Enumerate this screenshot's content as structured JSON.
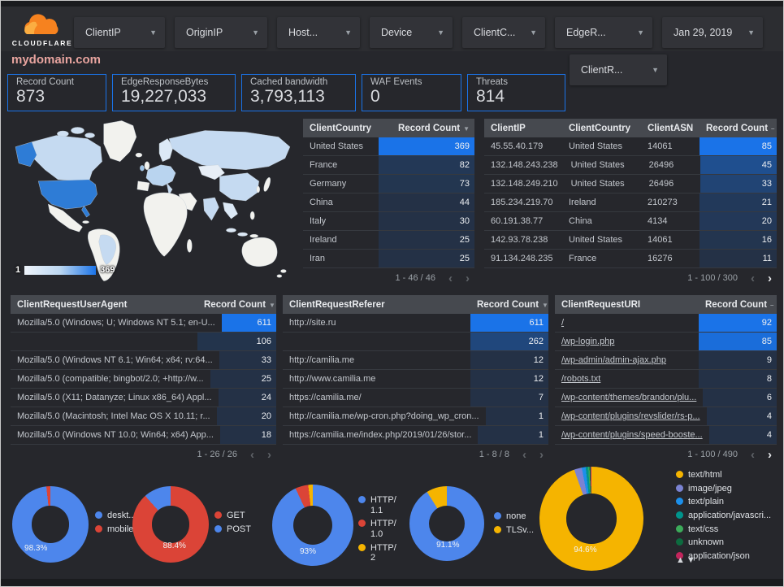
{
  "colors": {
    "accent": "#1a73e8",
    "accent_rgb": "26,115,232",
    "page_bg": "#26272c",
    "title_color": "#e8a49f",
    "logo_orange": "#f6821f"
  },
  "header": {
    "logo_text": "CLOUDFLARE",
    "filters": [
      {
        "label": "ClientIP"
      },
      {
        "label": "OriginIP"
      },
      {
        "label": "Host..."
      },
      {
        "label": "Device"
      },
      {
        "label": "ClientC..."
      },
      {
        "label": "EdgeR..."
      },
      {
        "label": "Jan 29, 2019"
      }
    ],
    "secondary_filter": {
      "label": "ClientR..."
    }
  },
  "title": "mydomain.com",
  "scorecards": [
    {
      "label": "Record Count",
      "value": "873"
    },
    {
      "label": "EdgeResponseBytes",
      "value": "19,227,033"
    },
    {
      "label": "Cached bandwidth",
      "value": "3,793,113"
    },
    {
      "label": "WAF Events",
      "value": "0"
    },
    {
      "label": "Threats",
      "value": "814"
    }
  ],
  "map": {
    "legend_min": "1",
    "legend_max": "369"
  },
  "tables": {
    "clientCountry": {
      "sort_char": "▼",
      "columns": [
        {
          "label": "ClientCountry",
          "flex": true
        },
        {
          "label": "Record Count",
          "w": 118,
          "sort": true,
          "num": true
        }
      ],
      "rows": [
        [
          "United States",
          369
        ],
        [
          "France",
          82
        ],
        [
          "Germany",
          73
        ],
        [
          "China",
          44
        ],
        [
          "Italy",
          30
        ],
        [
          "Ireland",
          25
        ],
        [
          "Iran",
          25
        ]
      ],
      "max": 369,
      "pager": {
        "label": "1 - 46 / 46",
        "prev_active": false,
        "next_active": false
      }
    },
    "clientIP": {
      "sort_char": "–",
      "columns": [
        {
          "label": "ClientIP",
          "flex": true
        },
        {
          "label": "ClientCountry",
          "w": 97
        },
        {
          "label": "ClientASN",
          "w": 72
        },
        {
          "label": "Record Count",
          "w": 95,
          "sort": true,
          "num": true
        }
      ],
      "rows": [
        [
          "45.55.40.179",
          "United States",
          "14061",
          85
        ],
        [
          "132.148.243.238",
          "United States",
          "26496",
          45
        ],
        [
          "132.148.249.210",
          "United States",
          "26496",
          33
        ],
        [
          "185.234.219.70",
          "Ireland",
          "210273",
          21
        ],
        [
          "60.191.38.77",
          "China",
          "4134",
          20
        ],
        [
          "142.93.78.238",
          "United States",
          "14061",
          16
        ],
        [
          "91.134.248.235",
          "France",
          "16276",
          11
        ]
      ],
      "max": 85,
      "pager": {
        "label": "1 - 100 / 300",
        "prev_active": false,
        "next_active": true
      }
    },
    "userAgent": {
      "sort_char": "▼",
      "columns": [
        {
          "label": "ClientRequestUserAgent",
          "flex": true
        },
        {
          "label": "Record Count",
          "w": 97,
          "sort": true,
          "num": true
        }
      ],
      "rows": [
        [
          "Mozilla/5.0 (Windows; U; Windows NT 5.1; en-U...",
          611
        ],
        [
          "",
          106
        ],
        [
          "Mozilla/5.0 (Windows NT 6.1; Win64; x64; rv:64...",
          33
        ],
        [
          "Mozilla/5.0 (compatible; bingbot/2.0; +http://w...",
          25
        ],
        [
          "Mozilla/5.0 (X11; Datanyze; Linux x86_64) Appl...",
          24
        ],
        [
          "Mozilla/5.0 (Macintosh; Intel Mac OS X 10.11; r...",
          20
        ],
        [
          "Mozilla/5.0 (Windows NT 10.0; Win64; x64) App...",
          18
        ]
      ],
      "max": 611,
      "pager": {
        "label": "1 - 26 / 26",
        "prev_active": false,
        "next_active": false
      }
    },
    "referer": {
      "sort_char": "▼",
      "columns": [
        {
          "label": "ClientRequestReferer",
          "flex": true
        },
        {
          "label": "Record Count",
          "w": 96,
          "sort": true,
          "num": true
        }
      ],
      "rows": [
        [
          "http://site.ru",
          611
        ],
        [
          "",
          262
        ],
        [
          "http://camilia.me",
          12
        ],
        [
          "http://www.camilia.me",
          12
        ],
        [
          "https://camilia.me/",
          7
        ],
        [
          "http://camilia.me/wp-cron.php?doing_wp_cron...",
          1
        ],
        [
          "https://camilia.me/index.php/2019/01/26/stor...",
          1
        ]
      ],
      "max": 611,
      "pager": {
        "label": "1 - 8 / 8",
        "prev_active": false,
        "next_active": false
      }
    },
    "uri": {
      "sort_char": "–",
      "links": true,
      "columns": [
        {
          "label": "ClientRequestURI",
          "flex": true
        },
        {
          "label": "Record Count",
          "w": 96,
          "sort": true,
          "num": true
        }
      ],
      "rows": [
        [
          "/",
          92
        ],
        [
          "/wp-login.php",
          85
        ],
        [
          "/wp-admin/admin-ajax.php",
          9
        ],
        [
          "/robots.txt",
          8
        ],
        [
          "/wp-content/themes/brandon/plu...",
          6
        ],
        [
          "/wp-content/plugins/revslider/rs-p...",
          4
        ],
        [
          "/wp-content/plugins/speed-booste...",
          4
        ]
      ],
      "max": 92,
      "pager": {
        "label": "1 - 100 / 490",
        "prev_active": false,
        "next_active": true
      }
    }
  },
  "donuts": [
    {
      "name": "device-share",
      "label": "98.3%",
      "slices": [
        {
          "name": "deskt...",
          "pct": 98.3,
          "color": "#4d86ec"
        },
        {
          "name": "mobile",
          "pct": 1.7,
          "color": "#db4437"
        }
      ]
    },
    {
      "name": "http-method-share",
      "label": "88.4%",
      "slices": [
        {
          "name": "GET",
          "pct": 88.4,
          "color": "#db4437"
        },
        {
          "name": "POST",
          "pct": 11.6,
          "color": "#4d86ec"
        }
      ]
    },
    {
      "name": "http-protocol-share",
      "label": "93%",
      "slices": [
        {
          "name": "HTTP/1.1",
          "pct": 93,
          "color": "#4d86ec"
        },
        {
          "name": "HTTP/1.0",
          "pct": 5.2,
          "color": "#db4437"
        },
        {
          "name": "HTTP/2",
          "pct": 1.8,
          "color": "#f5b400"
        }
      ]
    },
    {
      "name": "tls-share",
      "label": "91.1%",
      "slices": [
        {
          "name": "none",
          "pct": 91.1,
          "color": "#4d86ec"
        },
        {
          "name": "TLSv...",
          "pct": 8.9,
          "color": "#f5b400"
        }
      ]
    },
    {
      "name": "content-type-share",
      "label": "94.6%",
      "slices": [
        {
          "name": "text/html",
          "pct": 94.6,
          "color": "#f5b400"
        },
        {
          "name": "image/jpeg",
          "pct": 2.4,
          "color": "#7b83d3"
        },
        {
          "name": "text/plain",
          "pct": 1.2,
          "color": "#1c8fea"
        },
        {
          "name": "application/javascri...",
          "pct": 0.8,
          "color": "#00948c"
        },
        {
          "name": "text/css",
          "pct": 0.4,
          "color": "#3cab5a"
        },
        {
          "name": "unknown",
          "pct": 0.3,
          "color": "#0d6b3f"
        },
        {
          "name": "application/json",
          "pct": 0.3,
          "color": "#c2255c"
        }
      ]
    }
  ],
  "legend_sort_arrows": "▲▼"
}
